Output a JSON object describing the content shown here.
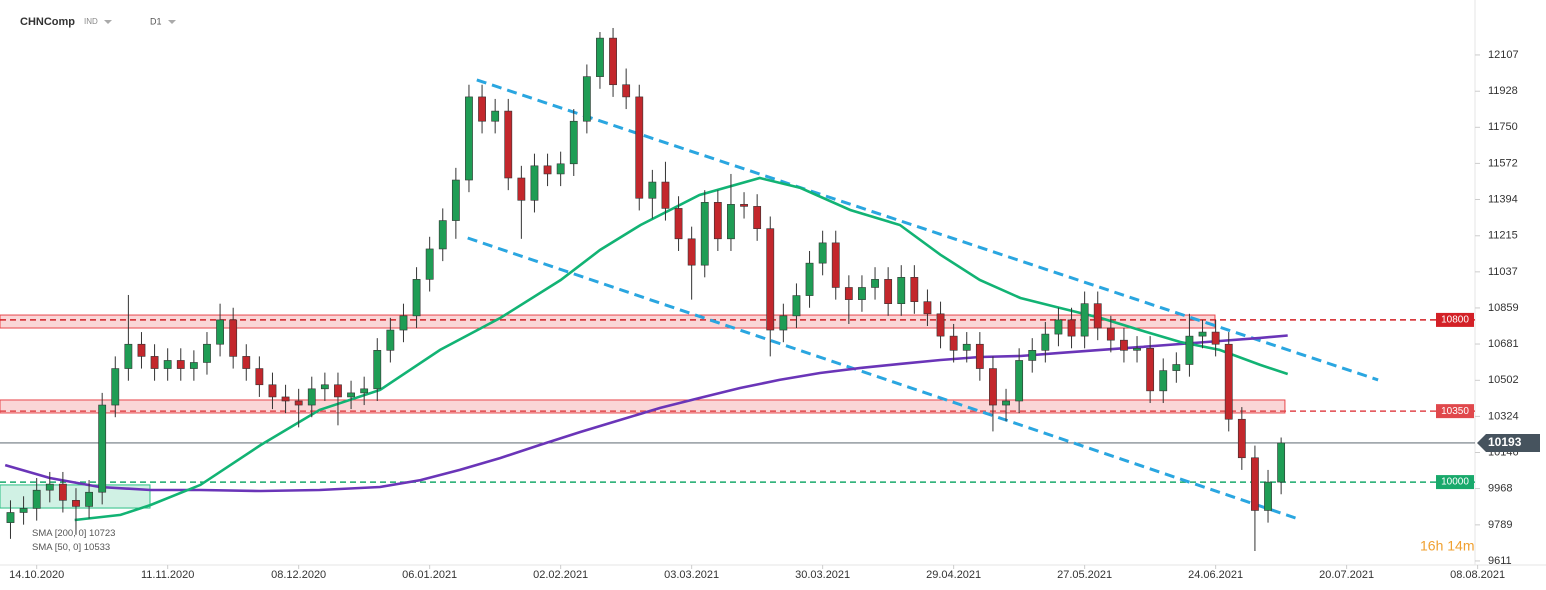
{
  "chart_data": {
    "type": "candlestick",
    "title": "CHNComp",
    "instrument_type": "IND",
    "timeframe": "D1",
    "countdown": "16h 14m",
    "ylim": [
      9591,
      12378
    ],
    "yticks": [
      12107,
      11928,
      11750,
      11572,
      11394,
      11215,
      11037,
      10859,
      10681,
      10502,
      10324,
      10146,
      9968,
      9789,
      9611
    ],
    "xlim": [
      -0.8,
      111.8
    ],
    "xticks": [
      {
        "value": 2,
        "label": "14.10.2020"
      },
      {
        "value": 12,
        "label": "11.11.2020"
      },
      {
        "value": 22,
        "label": "08.12.2020"
      },
      {
        "value": 32,
        "label": "06.01.2021"
      },
      {
        "value": 42,
        "label": "02.02.2021"
      },
      {
        "value": 52,
        "label": "03.03.2021"
      },
      {
        "value": 62,
        "label": "30.03.2021"
      },
      {
        "value": 72,
        "label": "29.04.2021"
      },
      {
        "value": 82,
        "label": "27.05.2021"
      },
      {
        "value": 92,
        "label": "24.06.2021"
      },
      {
        "value": 102,
        "label": "20.07.2021"
      },
      {
        "value": 112,
        "label": "08.08.2021"
      }
    ],
    "up_color": "#1f9d55",
    "down_color": "#c3272c",
    "open": [
      9800,
      9850,
      9870,
      9960,
      9990,
      9910,
      9880,
      9950,
      10380,
      10560,
      10680,
      10620,
      10560,
      10600,
      10560,
      10590,
      10680,
      10800,
      10620,
      10560,
      10480,
      10420,
      10400,
      10380,
      10460,
      10480,
      10420,
      10440,
      10460,
      10650,
      10750,
      10820,
      11000,
      11150,
      11290,
      11490,
      11900,
      11780,
      11830,
      11500,
      11390,
      11560,
      11520,
      11570,
      11780,
      12000,
      12190,
      11960,
      11900,
      11400,
      11480,
      11350,
      11200,
      11070,
      11380,
      11200,
      11370,
      11360,
      11250,
      10750,
      10820,
      10920,
      11080,
      11180,
      10960,
      10900,
      10960,
      11000,
      10880,
      11010,
      10890,
      10830,
      10720,
      10650,
      10680,
      10560,
      10380,
      10400,
      10600,
      10650,
      10730,
      10800,
      10720,
      10880,
      10760,
      10700,
      10650,
      10660,
      10450,
      10550,
      10580,
      10720,
      10740,
      10680,
      10310,
      10120,
      9860,
      10000
    ],
    "high": [
      9910,
      9930,
      10020,
      10050,
      10050,
      9970,
      10010,
      10440,
      10620,
      10923,
      10740,
      10680,
      10660,
      10660,
      10650,
      10740,
      10880,
      10860,
      10680,
      10620,
      10540,
      10480,
      10460,
      10520,
      10540,
      10540,
      10500,
      10520,
      10710,
      10810,
      10880,
      11060,
      11210,
      11350,
      11550,
      11960,
      11960,
      11890,
      11890,
      11560,
      11620,
      11620,
      11630,
      11840,
      12060,
      12220,
      12240,
      12040,
      11960,
      11540,
      11580,
      11410,
      11260,
      11440,
      11440,
      11520,
      11430,
      11420,
      11310,
      10880,
      10980,
      11140,
      11240,
      11240,
      11020,
      11020,
      11060,
      11060,
      11070,
      11070,
      10950,
      10890,
      10780,
      10740,
      10740,
      10620,
      10460,
      10660,
      10710,
      10790,
      10860,
      10860,
      10940,
      10940,
      10820,
      10760,
      10720,
      10720,
      10610,
      10640,
      10830,
      10800,
      10800,
      10740,
      10370,
      10180,
      10060,
      10220
    ],
    "low": [
      9720,
      9790,
      9810,
      9900,
      9850,
      9740,
      9820,
      9890,
      10320,
      10500,
      10560,
      10500,
      10500,
      10500,
      10500,
      10530,
      10620,
      10560,
      10500,
      10420,
      10360,
      10340,
      10270,
      10320,
      10400,
      10280,
      10360,
      10380,
      10400,
      10590,
      10690,
      10760,
      10940,
      11090,
      11200,
      11430,
      11720,
      11720,
      11440,
      11200,
      11330,
      11460,
      11460,
      11510,
      11720,
      11940,
      11900,
      11840,
      11340,
      11300,
      11290,
      11140,
      10900,
      11010,
      11140,
      11140,
      11300,
      11190,
      10620,
      10690,
      10760,
      10860,
      11020,
      10900,
      10780,
      10840,
      10900,
      10820,
      10820,
      10830,
      10770,
      10660,
      10590,
      10590,
      10500,
      10250,
      10300,
      10340,
      10540,
      10590,
      10670,
      10660,
      10660,
      10700,
      10640,
      10590,
      10590,
      10390,
      10390,
      10490,
      10520,
      10660,
      10620,
      10250,
      10060,
      9660,
      9800,
      9940
    ],
    "close": [
      9850,
      9870,
      9960,
      9990,
      9910,
      9880,
      9950,
      10380,
      10560,
      10680,
      10620,
      10560,
      10600,
      10560,
      10590,
      10680,
      10800,
      10620,
      10560,
      10480,
      10420,
      10400,
      10380,
      10460,
      10480,
      10420,
      10440,
      10460,
      10650,
      10750,
      10820,
      11000,
      11150,
      11290,
      11490,
      11900,
      11780,
      11830,
      11500,
      11390,
      11560,
      11520,
      11570,
      11780,
      12000,
      12190,
      11960,
      11900,
      11400,
      11480,
      11350,
      11200,
      11070,
      11380,
      11200,
      11370,
      11360,
      11250,
      10750,
      10820,
      10920,
      11080,
      11180,
      10960,
      10900,
      10960,
      11000,
      10880,
      11010,
      10890,
      10830,
      10720,
      10650,
      10680,
      10560,
      10380,
      10400,
      10600,
      10650,
      10730,
      10800,
      10720,
      10880,
      10760,
      10700,
      10650,
      10660,
      10450,
      10550,
      10580,
      10720,
      10740,
      10680,
      10310,
      10120,
      9860,
      10000,
      10193
    ],
    "sma": [
      {
        "name": "SMA [200, 0]",
        "color": "#6a35b8",
        "x": [
          -0.4,
          3.0,
          6.8,
          10.7,
          14.5,
          19.1,
          23.6,
          28.2,
          31.3,
          34.3,
          37.4,
          40.4,
          43.5,
          46.5,
          49.6,
          52.6,
          55.7,
          58.7,
          61.8,
          64.9,
          67.9,
          71.0,
          74.0,
          77.1,
          80.1,
          83.2,
          86.2,
          89.3,
          92.3,
          95.4,
          97.5
        ],
        "values": [
          10084,
          10020,
          9976,
          9961,
          9961,
          9956,
          9961,
          9976,
          10010,
          10060,
          10119,
          10183,
          10247,
          10306,
          10366,
          10415,
          10464,
          10504,
          10538,
          10563,
          10583,
          10602,
          10617,
          10622,
          10637,
          10652,
          10666,
          10681,
          10696,
          10711,
          10723
        ]
      },
      {
        "name": "SMA [50, 0]",
        "color": "#12b374",
        "x": [
          4.9,
          8.4,
          10.7,
          14.5,
          19.1,
          23.6,
          28.2,
          32.8,
          37.4,
          42.0,
          45.0,
          48.1,
          52.6,
          57.2,
          60.3,
          64.1,
          67.9,
          71.0,
          74.0,
          77.1,
          80.1,
          83.2,
          86.2,
          89.3,
          92.3,
          95.4,
          97.5
        ],
        "values": [
          9813,
          9838,
          9887,
          9986,
          10183,
          10356,
          10454,
          10652,
          10810,
          10997,
          11145,
          11268,
          11416,
          11500,
          11451,
          11342,
          11268,
          11121,
          10997,
          10908,
          10859,
          10810,
          10750,
          10691,
          10652,
          10578,
          10533
        ]
      }
    ],
    "trend_color": "#2aa6e0",
    "trendlines": [
      {
        "x": [
          35.6,
          104.4
        ],
        "values": [
          11984,
          10504
        ]
      },
      {
        "x": [
          34.9,
          98.1
        ],
        "values": [
          11204,
          9823
        ]
      }
    ],
    "zones": [
      {
        "x": [
          -0.8,
          91.95
        ],
        "range": [
          10760,
          10824
        ],
        "color": "#e8464b"
      },
      {
        "x": [
          -0.8,
          97.29
        ],
        "range": [
          10341,
          10405
        ],
        "color": "#e8464b"
      },
      {
        "x": [
          -0.8,
          10.65
        ],
        "range": [
          9872,
          9986
        ],
        "color": "#2bbf84"
      }
    ],
    "levels": [
      {
        "value": 10800,
        "color": "#d32026"
      },
      {
        "value": 10350,
        "color": "#e0484c"
      },
      {
        "value": 10000,
        "color": "#18a96b"
      }
    ],
    "last_price": 10193,
    "last_color": "#46535e"
  }
}
